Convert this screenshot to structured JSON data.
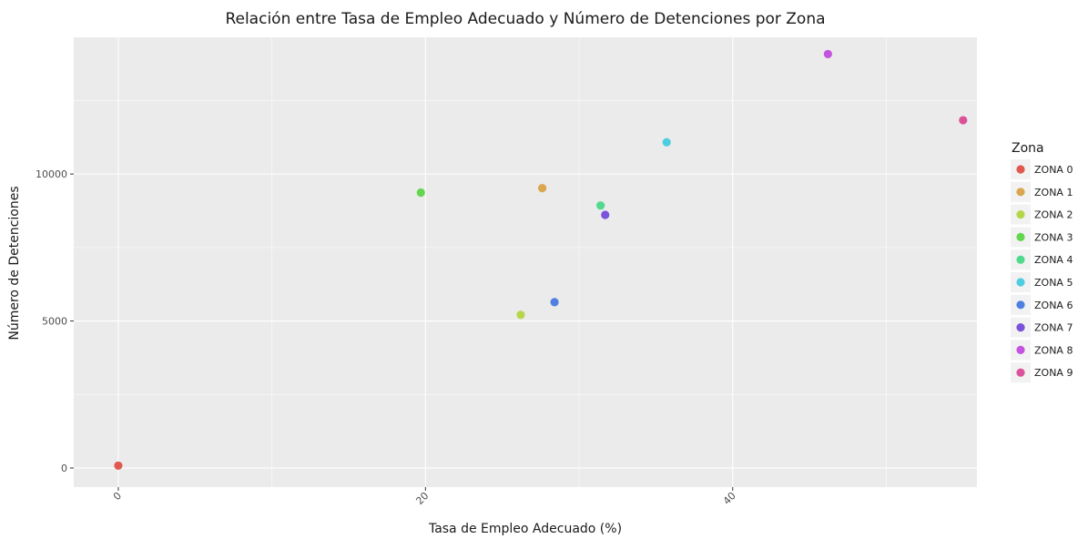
{
  "chart_data": {
    "type": "scatter",
    "title": "Relación entre Tasa de Empleo Adecuado y Número de Detenciones por Zona",
    "xlabel": "Tasa de Empleo Adecuado (%)",
    "ylabel": "Número de Detenciones",
    "xlim": [
      -2.9,
      55.9
    ],
    "ylim": [
      -650,
      14650
    ],
    "x_ticks": [
      0,
      20,
      40
    ],
    "x_tick_labels": [
      "0",
      "20",
      "40"
    ],
    "y_ticks": [
      0,
      5000,
      10000
    ],
    "y_tick_labels": [
      "0",
      "5000",
      "10000"
    ],
    "grid": true,
    "legend": {
      "title": "Zona",
      "position": "right"
    },
    "series": [
      {
        "name": "ZONA 0",
        "color": "#e0584f",
        "x": 0.0,
        "y": 80
      },
      {
        "name": "ZONA 1",
        "color": "#daa64f",
        "x": 27.6,
        "y": 9520
      },
      {
        "name": "ZONA 2",
        "color": "#b6d64a",
        "x": 26.2,
        "y": 5210
      },
      {
        "name": "ZONA 3",
        "color": "#63d64f",
        "x": 19.7,
        "y": 9370
      },
      {
        "name": "ZONA 4",
        "color": "#51d98d",
        "x": 31.4,
        "y": 8930
      },
      {
        "name": "ZONA 5",
        "color": "#4fcde0",
        "x": 35.7,
        "y": 11080
      },
      {
        "name": "ZONA 6",
        "color": "#4f80e0",
        "x": 28.4,
        "y": 5640
      },
      {
        "name": "ZONA 7",
        "color": "#7a52dc",
        "x": 31.7,
        "y": 8610
      },
      {
        "name": "ZONA 8",
        "color": "#c552e0",
        "x": 46.2,
        "y": 14080
      },
      {
        "name": "ZONA 9",
        "color": "#dc529a",
        "x": 55.0,
        "y": 11830
      }
    ],
    "colors": {
      "panel": "#ebebeb",
      "grid_major": "#ffffff",
      "grid_minor": "#f7f7f7"
    }
  }
}
